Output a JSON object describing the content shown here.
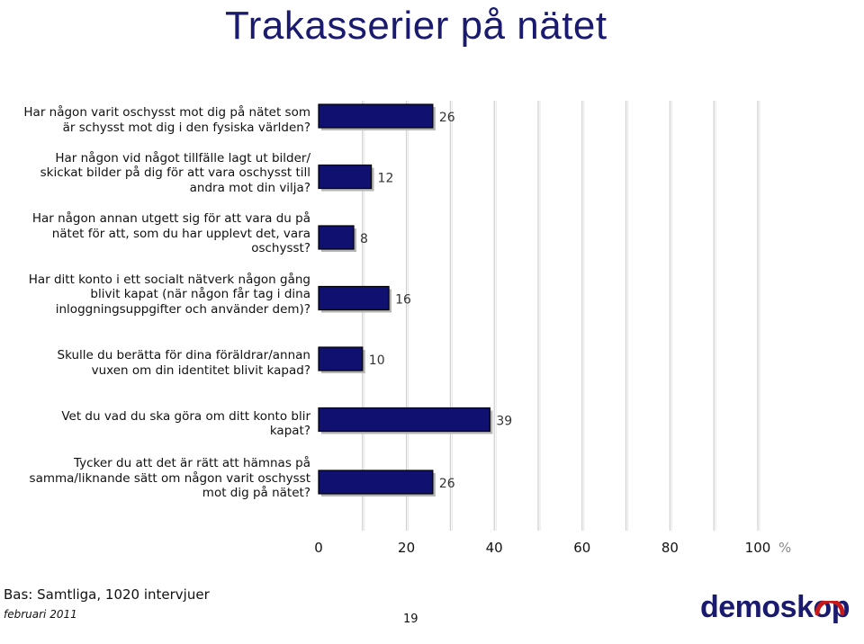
{
  "title": "Trakasserier på nätet",
  "chart_data": {
    "type": "bar",
    "orientation": "horizontal",
    "categories": [
      "Har någon varit oschysst mot dig på nätet som är schysst mot dig i den fysiska världen?",
      "Har någon vid något tillfälle lagt ut bilder/ skickat bilder på dig för att vara oschysst till andra mot din vilja?",
      "Har någon annan utgett sig för att vara du på nätet för att, som du har upplevt det, vara oschysst?",
      "Har ditt konto i ett socialt nätverk någon gång blivit kapat (när någon får tag i dina inloggningsuppgifter och använder dem)?",
      "Skulle du berätta för dina föräldrar/annan vuxen om din identitet blivit kapad?",
      "Vet du vad du ska göra om ditt konto blir kapat?",
      "Tycker du att det är rätt att hämnas på samma/liknande sätt om någon varit oschysst mot dig på nätet?"
    ],
    "values": [
      26,
      12,
      8,
      16,
      10,
      39,
      26
    ],
    "xlim": [
      0,
      100
    ],
    "xticks": [
      "0",
      "20",
      "40",
      "60",
      "80",
      "100"
    ],
    "xunit": "%",
    "grid": true,
    "bar_color": "#101070",
    "data_labels": true
  },
  "footer": {
    "base": "Bas: Samtliga, 1020 intervjuer",
    "date": "februari 2011",
    "page": "19",
    "logo": "demoskop"
  }
}
